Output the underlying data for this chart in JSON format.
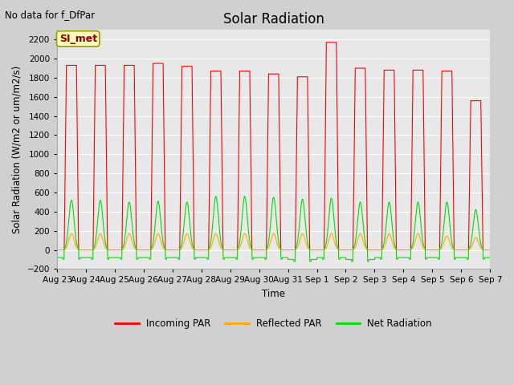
{
  "title": "Solar Radiation",
  "subtitle": "No data for f_DfPar",
  "ylabel": "Solar Radiation (W/m2 or um/m2/s)",
  "xlabel": "Time",
  "ylim": [
    -200,
    2300
  ],
  "yticks": [
    -200,
    0,
    200,
    400,
    600,
    800,
    1000,
    1200,
    1400,
    1600,
    1800,
    2000,
    2200
  ],
  "x_labels": [
    "Aug 23",
    "Aug 24",
    "Aug 25",
    "Aug 26",
    "Aug 27",
    "Aug 28",
    "Aug 29",
    "Aug 30",
    "Aug 31",
    "Sep 1",
    "Sep 2",
    "Sep 3",
    "Sep 4",
    "Sep 5",
    "Sep 6",
    "Sep 7"
  ],
  "legend_labels": [
    "Incoming PAR",
    "Reflected PAR",
    "Net Radiation"
  ],
  "incoming_color": "#ff0000",
  "reflected_color": "#ffaa00",
  "net_color": "#00dd00",
  "bg_color": "#e8e8e8",
  "fig_color": "#d0d0d0",
  "box_label": "SI_met",
  "box_facecolor": "#ffffbb",
  "box_edgecolor": "#999900",
  "box_textcolor": "#880000",
  "n_days": 15,
  "incoming_peaks": [
    1930,
    1930,
    1930,
    1950,
    1920,
    1870,
    1870,
    1840,
    1810,
    2170,
    1900,
    1880,
    1880,
    1870,
    1560
  ],
  "reflected_peaks": [
    170,
    170,
    170,
    170,
    170,
    170,
    170,
    170,
    170,
    170,
    170,
    170,
    170,
    145,
    130
  ],
  "net_peaks": [
    520,
    520,
    500,
    510,
    500,
    560,
    560,
    550,
    530,
    540,
    500,
    500,
    500,
    500,
    420
  ],
  "net_night": [
    -80,
    -80,
    -80,
    -80,
    -80,
    -80,
    -80,
    -80,
    -100,
    -80,
    -100,
    -80,
    -80,
    -80,
    -80
  ],
  "pts_per_day": 288
}
